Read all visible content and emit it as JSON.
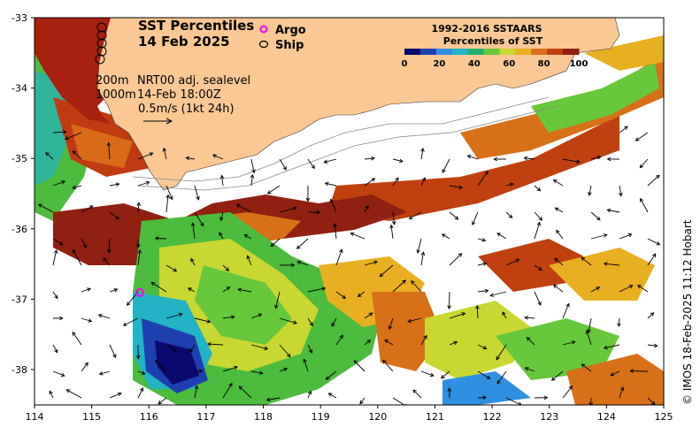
{
  "title": {
    "line1": "SST Percentiles",
    "line2": "14 Feb 2025"
  },
  "legend": {
    "argo": "Argo",
    "ship": "Ship"
  },
  "annotations": {
    "iso_200": "200m",
    "iso_1000": "1000m",
    "product": "NRT00 adj. sealevel",
    "valid_time": "14-Feb 18:00Z",
    "velocity_scale": "0.5m/s (1kt 24h)"
  },
  "colorbar": {
    "title1": "1992-2016 SSTAARS",
    "title2": "Percentiles of SST",
    "ticks": [
      "0",
      "20",
      "40",
      "60",
      "80",
      "100"
    ],
    "colors": [
      "#0a0a6e",
      "#1f3fb0",
      "#2f8fe0",
      "#22b3c4",
      "#20b070",
      "#66c83a",
      "#c8d830",
      "#e8b020",
      "#d87018",
      "#c04010",
      "#902010"
    ]
  },
  "axes": {
    "x_ticks": [
      "114",
      "115",
      "116",
      "117",
      "118",
      "119",
      "120",
      "121",
      "122",
      "123",
      "124",
      "125"
    ],
    "y_ticks": [
      "-33",
      "-34",
      "-35",
      "-36",
      "-37",
      "-38"
    ]
  },
  "credit": "© IMOS 18-Feb-2025 11:12 Hobart",
  "colors": {
    "land": "#fbc894",
    "ocean_no_data": "#ffffff",
    "argo": "#ff00ff"
  }
}
